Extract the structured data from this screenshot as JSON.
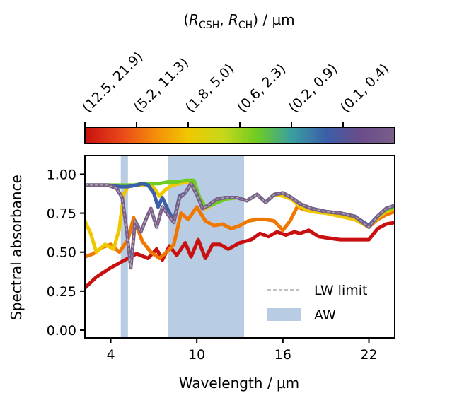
{
  "chart_data": {
    "type": "line",
    "xlabel": "Wavelength / µm",
    "ylabel": "Spectral absorbance",
    "xlim": [
      2.2,
      23.8
    ],
    "ylim": [
      -0.05,
      1.12
    ],
    "x_ticks": [
      4,
      10,
      16,
      22
    ],
    "x_tick_labels": [
      "4",
      "10",
      "16",
      "22"
    ],
    "y_ticks": [
      0.0,
      0.25,
      0.5,
      0.75,
      1.0
    ],
    "y_tick_labels": [
      "0.00",
      "0.25",
      "0.50",
      "0.75",
      "1.00"
    ],
    "grid": false,
    "legend_placement": "lower-right",
    "legend": [
      {
        "label": "LW limit",
        "kind": "dashed-line",
        "color": "#aaaaaa"
      },
      {
        "label": "AW",
        "kind": "patch",
        "color": "#b8cce4"
      }
    ],
    "bands": [
      {
        "x": [
          4.7,
          5.2
        ],
        "color": "#b8cce4"
      },
      {
        "x": [
          8.0,
          13.3
        ],
        "color": "#b8cce4"
      }
    ],
    "colorbar": {
      "title": "(R_CSH, R_CH) / µm",
      "title_main": "(",
      "title_r1": "R",
      "title_s1": "CSH",
      "title_sep": ", ",
      "title_r2": "R",
      "title_s2": "CH",
      "title_end": ") / µm",
      "tick_labels": [
        "(12.5, 21.9)",
        "(5.2, 11.3)",
        "(1.8, 5.0)",
        "(0.6, 2.3)",
        "(0.2, 0.9)",
        "(0.1, 0.4)"
      ],
      "gradient_colors": [
        "#c81010",
        "#e8441a",
        "#f58a0a",
        "#f0c800",
        "#c8d81a",
        "#6ecc22",
        "#3a9fa0",
        "#3b5fa8",
        "#6a4c8a",
        "#7a5e8a"
      ]
    },
    "series": [
      {
        "color": "#c81010",
        "x": [
          2.2,
          3,
          4,
          5,
          5.8,
          6.6,
          7.2,
          7.6,
          8.1,
          8.6,
          9.2,
          9.6,
          10.1,
          10.6,
          11.1,
          11.6,
          12.2,
          13,
          13.8,
          14.4,
          15,
          15.6,
          16.2,
          16.8,
          17.2,
          17.8,
          18.5,
          19.2,
          20,
          21,
          22,
          22.6,
          23.2,
          23.8
        ],
        "y": [
          0.27,
          0.34,
          0.4,
          0.45,
          0.49,
          0.46,
          0.52,
          0.45,
          0.54,
          0.48,
          0.56,
          0.47,
          0.58,
          0.46,
          0.55,
          0.55,
          0.52,
          0.56,
          0.58,
          0.62,
          0.6,
          0.63,
          0.61,
          0.63,
          0.62,
          0.64,
          0.6,
          0.59,
          0.58,
          0.58,
          0.58,
          0.65,
          0.68,
          0.69
        ]
      },
      {
        "color": "#f07800",
        "x": [
          2.2,
          2.8,
          3.4,
          4,
          4.6,
          5.2,
          5.6,
          6.2,
          6.8,
          7.4,
          7.9,
          8.4,
          8.9,
          9.4,
          10,
          10.6,
          11.2,
          11.8,
          12.4,
          13,
          13.6,
          14.2,
          14.8,
          15.4,
          16,
          16.5,
          17,
          17.6,
          18.4,
          19.2,
          20,
          21,
          22,
          22.6,
          23.2,
          23.8
        ],
        "y": [
          0.47,
          0.49,
          0.53,
          0.55,
          0.5,
          0.58,
          0.72,
          0.57,
          0.5,
          0.46,
          0.5,
          0.55,
          0.75,
          0.71,
          0.79,
          0.7,
          0.67,
          0.68,
          0.65,
          0.67,
          0.7,
          0.71,
          0.71,
          0.7,
          0.64,
          0.7,
          0.79,
          0.77,
          0.76,
          0.75,
          0.73,
          0.73,
          0.66,
          0.71,
          0.74,
          0.76
        ]
      },
      {
        "color": "#f0c800",
        "x": [
          2.2,
          2.6,
          3,
          3.6,
          4.2,
          4.6,
          4.9,
          5.2,
          5.6,
          6.2,
          6.8,
          7.4,
          7.8,
          8.3,
          8.8,
          9.3,
          9.8,
          10.2,
          10.6,
          11.2,
          12,
          12.8,
          13.5,
          14.2,
          14.8,
          15.4,
          16,
          16.6,
          17.2,
          18,
          19,
          20,
          21,
          22,
          22.6,
          23.2,
          23.8
        ],
        "y": [
          0.7,
          0.62,
          0.5,
          0.55,
          0.52,
          0.65,
          0.87,
          0.92,
          0.93,
          0.93,
          0.94,
          0.86,
          0.9,
          0.93,
          0.94,
          0.95,
          0.93,
          0.84,
          0.78,
          0.81,
          0.84,
          0.85,
          0.83,
          0.87,
          0.82,
          0.87,
          0.86,
          0.84,
          0.79,
          0.76,
          0.75,
          0.73,
          0.71,
          0.66,
          0.72,
          0.76,
          0.78
        ]
      },
      {
        "color": "#6ecc22",
        "x": [
          2.2,
          2.8,
          3.6,
          4.4,
          5,
          5.6,
          6.2,
          6.8,
          7.4,
          8,
          8.6,
          9.2,
          9.8,
          10.2,
          10.6,
          11.2,
          12,
          12.8,
          13.5,
          14.2,
          14.8,
          15.4,
          16,
          16.6,
          17.2,
          18,
          19,
          20,
          21,
          22,
          22.6,
          23.2,
          23.8
        ],
        "y": [
          0.93,
          0.93,
          0.93,
          0.93,
          0.93,
          0.93,
          0.94,
          0.94,
          0.94,
          0.95,
          0.95,
          0.96,
          0.96,
          0.85,
          0.79,
          0.81,
          0.84,
          0.85,
          0.83,
          0.87,
          0.82,
          0.87,
          0.88,
          0.85,
          0.81,
          0.78,
          0.76,
          0.75,
          0.73,
          0.67,
          0.73,
          0.77,
          0.79
        ]
      },
      {
        "color": "#3b5fa8",
        "x": [
          2.2,
          3,
          3.8,
          4.6,
          5.2,
          5.8,
          6.2,
          6.6,
          7,
          7.3,
          7.6,
          8,
          8.4,
          8.8,
          9.2,
          9.6,
          10,
          10.4,
          10.8,
          11.4,
          12,
          12.8,
          13.5,
          14.2,
          14.8,
          15.4,
          16,
          16.6,
          17.2,
          18,
          19,
          20,
          21,
          22,
          22.6,
          23.2,
          23.8
        ],
        "y": [
          0.93,
          0.93,
          0.93,
          0.92,
          0.92,
          0.93,
          0.94,
          0.93,
          0.88,
          0.79,
          0.85,
          0.77,
          0.7,
          0.86,
          0.88,
          0.94,
          0.87,
          0.78,
          0.8,
          0.84,
          0.85,
          0.85,
          0.83,
          0.87,
          0.82,
          0.87,
          0.88,
          0.85,
          0.81,
          0.78,
          0.76,
          0.75,
          0.73,
          0.67,
          0.73,
          0.78,
          0.8
        ]
      },
      {
        "color": "#7a5e8a",
        "x": [
          2.2,
          3,
          3.8,
          4.4,
          4.8,
          5.1,
          5.4,
          5.7,
          6.1,
          6.5,
          6.8,
          7.2,
          7.6,
          8,
          8.4,
          8.8,
          9.2,
          9.6,
          10,
          10.4,
          10.8,
          11.4,
          12,
          12.8,
          13.5,
          14.2,
          14.8,
          15.4,
          16,
          16.6,
          17.2,
          18,
          19,
          20,
          21,
          22,
          22.6,
          23.2,
          23.8
        ],
        "y": [
          0.93,
          0.93,
          0.93,
          0.91,
          0.85,
          0.65,
          0.4,
          0.7,
          0.63,
          0.72,
          0.78,
          0.66,
          0.79,
          0.74,
          0.69,
          0.85,
          0.88,
          0.94,
          0.87,
          0.78,
          0.8,
          0.84,
          0.85,
          0.85,
          0.83,
          0.87,
          0.82,
          0.87,
          0.88,
          0.85,
          0.81,
          0.78,
          0.76,
          0.75,
          0.73,
          0.66,
          0.73,
          0.78,
          0.8
        ]
      }
    ],
    "lw_limit": {
      "color": "#aaaaaa",
      "x": [
        2.2,
        3,
        3.8,
        4.4,
        4.8,
        5.1,
        5.4,
        5.7,
        6.1,
        6.5,
        6.8,
        7.2,
        7.6,
        8,
        8.4,
        8.8,
        9.2,
        9.6,
        10,
        10.4,
        10.8,
        11.4,
        12,
        12.8,
        13.5,
        14.2,
        14.8,
        15.4,
        16,
        16.6,
        17.2,
        18,
        19,
        20,
        21,
        22,
        22.6,
        23.2,
        23.8
      ],
      "y": [
        0.93,
        0.93,
        0.93,
        0.91,
        0.85,
        0.65,
        0.4,
        0.7,
        0.63,
        0.72,
        0.78,
        0.66,
        0.79,
        0.74,
        0.69,
        0.85,
        0.88,
        0.94,
        0.87,
        0.78,
        0.8,
        0.84,
        0.85,
        0.85,
        0.83,
        0.87,
        0.82,
        0.87,
        0.88,
        0.85,
        0.81,
        0.78,
        0.76,
        0.75,
        0.73,
        0.66,
        0.73,
        0.78,
        0.8
      ]
    }
  }
}
